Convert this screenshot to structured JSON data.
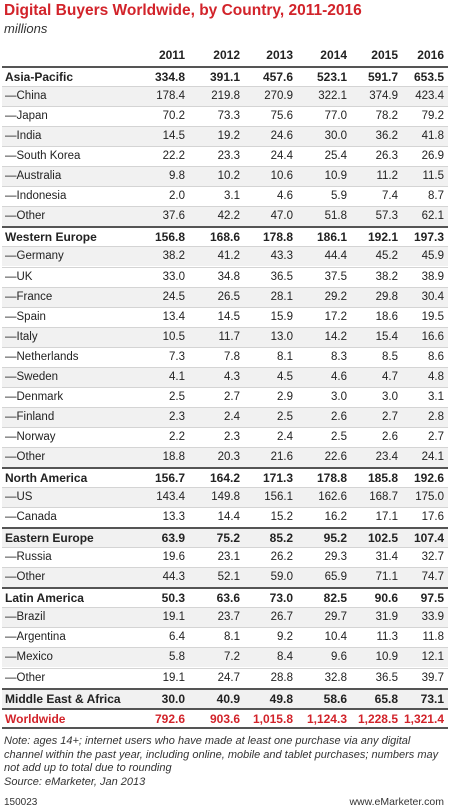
{
  "header": {
    "title": "Digital Buyers Worldwide, by Country, 2011-2016",
    "subtitle": "millions"
  },
  "table": {
    "columns": [
      "2011",
      "2012",
      "2013",
      "2014",
      "2015",
      "2016"
    ],
    "rows": [
      [
        "Asia-Pacific",
        "334.8",
        "391.1",
        "457.6",
        "523.1",
        "591.7",
        "653.5"
      ],
      [
        "—China",
        "178.4",
        "219.8",
        "270.9",
        "322.1",
        "374.9",
        "423.4"
      ],
      [
        "—Japan",
        "70.2",
        "73.3",
        "75.6",
        "77.0",
        "78.2",
        "79.2"
      ],
      [
        "—India",
        "14.5",
        "19.2",
        "24.6",
        "30.0",
        "36.2",
        "41.8"
      ],
      [
        "—South Korea",
        "22.2",
        "23.3",
        "24.4",
        "25.4",
        "26.3",
        "26.9"
      ],
      [
        "—Australia",
        "9.8",
        "10.2",
        "10.6",
        "10.9",
        "11.2",
        "11.5"
      ],
      [
        "—Indonesia",
        "2.0",
        "3.1",
        "4.6",
        "5.9",
        "7.4",
        "8.7"
      ],
      [
        "—Other",
        "37.6",
        "42.2",
        "47.0",
        "51.8",
        "57.3",
        "62.1"
      ],
      [
        "Western Europe",
        "156.8",
        "168.6",
        "178.8",
        "186.1",
        "192.1",
        "197.3"
      ],
      [
        "—Germany",
        "38.2",
        "41.2",
        "43.3",
        "44.4",
        "45.2",
        "45.9"
      ],
      [
        "—UK",
        "33.0",
        "34.8",
        "36.5",
        "37.5",
        "38.2",
        "38.9"
      ],
      [
        "—France",
        "24.5",
        "26.5",
        "28.1",
        "29.2",
        "29.8",
        "30.4"
      ],
      [
        "—Spain",
        "13.4",
        "14.5",
        "15.9",
        "17.2",
        "18.6",
        "19.5"
      ],
      [
        "—Italy",
        "10.5",
        "11.7",
        "13.0",
        "14.2",
        "15.4",
        "16.6"
      ],
      [
        "—Netherlands",
        "7.3",
        "7.8",
        "8.1",
        "8.3",
        "8.5",
        "8.6"
      ],
      [
        "—Sweden",
        "4.1",
        "4.3",
        "4.5",
        "4.6",
        "4.7",
        "4.8"
      ],
      [
        "—Denmark",
        "2.5",
        "2.7",
        "2.9",
        "3.0",
        "3.0",
        "3.1"
      ],
      [
        "—Finland",
        "2.3",
        "2.4",
        "2.5",
        "2.6",
        "2.7",
        "2.8"
      ],
      [
        "—Norway",
        "2.2",
        "2.3",
        "2.4",
        "2.5",
        "2.6",
        "2.7"
      ],
      [
        "—Other",
        "18.8",
        "20.3",
        "21.6",
        "22.6",
        "23.4",
        "24.1"
      ],
      [
        "North America",
        "156.7",
        "164.2",
        "171.3",
        "178.8",
        "185.8",
        "192.6"
      ],
      [
        "—US",
        "143.4",
        "149.8",
        "156.1",
        "162.6",
        "168.7",
        "175.0"
      ],
      [
        "—Canada",
        "13.3",
        "14.4",
        "15.2",
        "16.2",
        "17.1",
        "17.6"
      ],
      [
        "Eastern Europe",
        "63.9",
        "75.2",
        "85.2",
        "95.2",
        "102.5",
        "107.4"
      ],
      [
        "—Russia",
        "19.6",
        "23.1",
        "26.2",
        "29.3",
        "31.4",
        "32.7"
      ],
      [
        "—Other",
        "44.3",
        "52.1",
        "59.0",
        "65.9",
        "71.1",
        "74.7"
      ],
      [
        "Latin America",
        "50.3",
        "63.6",
        "73.0",
        "82.5",
        "90.6",
        "97.5"
      ],
      [
        "—Brazil",
        "19.1",
        "23.7",
        "26.7",
        "29.7",
        "31.9",
        "33.9"
      ],
      [
        "—Argentina",
        "6.4",
        "8.1",
        "9.2",
        "10.4",
        "11.3",
        "11.8"
      ],
      [
        "—Mexico",
        "5.8",
        "7.2",
        "8.4",
        "9.6",
        "10.9",
        "12.1"
      ],
      [
        "—Other",
        "19.1",
        "24.7",
        "28.8",
        "32.8",
        "36.5",
        "39.7"
      ],
      [
        "Middle East & Africa",
        "30.0",
        "40.9",
        "49.8",
        "58.6",
        "65.8",
        "73.1"
      ]
    ],
    "total": [
      "Worldwide",
      "792.6",
      "903.6",
      "1,015.8",
      "1,124.3",
      "1,228.5",
      "1,321.4"
    ]
  },
  "footer": {
    "note": "Note: ages 14+; internet users who have made at least one purchase via any digital channel within the past year, including online, mobile and tablet purchases; numbers may not add up to total due to rounding",
    "source": "Source: eMarketer, Jan 2013",
    "code": "150023",
    "site": "www.eMarketer.com"
  }
}
